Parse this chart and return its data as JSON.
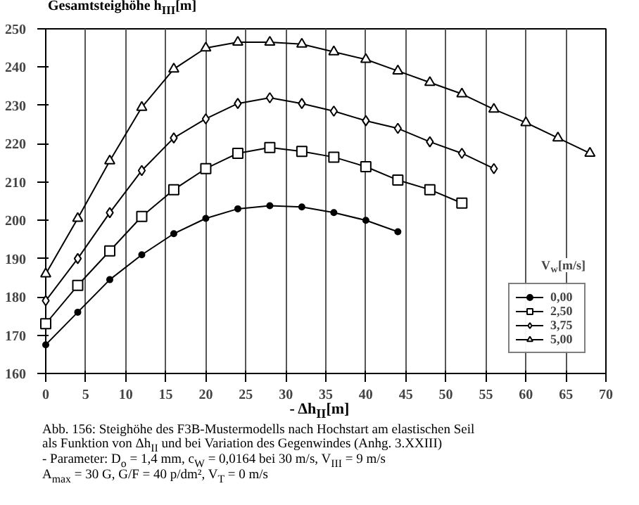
{
  "chart_data": {
    "type": "line",
    "ylabel": "Gesamtsteighöhe h$_{III}$[m]",
    "xlabel": "- Δh$_{II}$[m]",
    "legend_title": "V$_{w}$[m/s]",
    "xlim": [
      0,
      70
    ],
    "ylim": [
      160,
      250
    ],
    "xticks": [
      0,
      5,
      10,
      15,
      20,
      25,
      30,
      35,
      40,
      45,
      50,
      55,
      60,
      65,
      70
    ],
    "yticks": [
      160,
      170,
      180,
      190,
      200,
      210,
      220,
      230,
      240,
      250
    ],
    "grid": "x",
    "legend": "bottom right",
    "line_style": "solid",
    "series": [
      {
        "name": "0,00",
        "color": "#000000",
        "marker": "circle",
        "x": [
          0,
          4,
          8,
          12,
          16,
          20,
          24,
          28,
          32,
          36,
          40,
          44
        ],
        "values": [
          167.5,
          176,
          184.5,
          191,
          196.5,
          200.5,
          203,
          203.8,
          203.5,
          202,
          200,
          197
        ]
      },
      {
        "name": "2,50",
        "color": "#000000",
        "marker": "square",
        "x": [
          0,
          4,
          8,
          12,
          16,
          20,
          24,
          28,
          32,
          36,
          40,
          44,
          48,
          52
        ],
        "values": [
          173,
          183,
          192,
          201,
          208,
          213.5,
          217.5,
          219,
          218,
          216.5,
          214,
          210.5,
          208,
          204.5
        ]
      },
      {
        "name": "3,75",
        "color": "#000000",
        "marker": "diamond",
        "x": [
          0,
          4,
          8,
          12,
          16,
          20,
          24,
          28,
          32,
          36,
          40,
          44,
          48,
          52,
          56
        ],
        "values": [
          179,
          190,
          202,
          213,
          221.5,
          226.5,
          230.5,
          232,
          230.5,
          228.5,
          226,
          224,
          220.5,
          217.5,
          213.5
        ]
      },
      {
        "name": "5,00",
        "color": "#000000",
        "marker": "triangle",
        "x": [
          0,
          4,
          8,
          12,
          16,
          20,
          24,
          28,
          32,
          36,
          40,
          44,
          48,
          52,
          56,
          60,
          64,
          68
        ],
        "values": [
          186,
          200.5,
          215.5,
          229.5,
          239.5,
          245,
          246.5,
          246.5,
          246,
          244,
          242,
          239,
          236,
          233,
          229,
          225.5,
          221.5,
          217.5
        ]
      }
    ],
    "annotations": [
      "Abb. 156: Steighöhe des F3B-Mustermodells nach Hochstart am elastischen Seil",
      "als Funktion von Δh$_{II}$ und bei Variation des Gegenwindes (Anhg. 3.XXIII)",
      "- Parameter: D$_{o}$ = 1,4 mm, c$_{W}$ = 0,0164 bei 30 m/s, V$_{III}$ = 9 m/s",
      "A$_{max}$ = 30 G, G/F = 40 p/dm², V$_{T}$ = 0 m/s"
    ]
  }
}
